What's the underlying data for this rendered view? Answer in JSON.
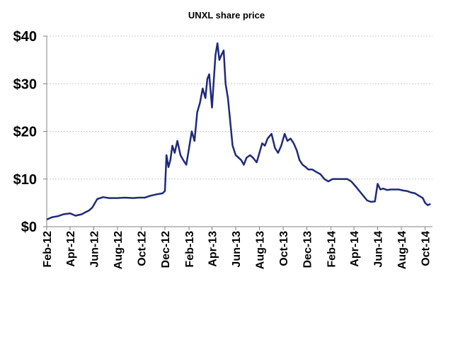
{
  "chart_data": {
    "type": "line",
    "title": "UNXL share price",
    "ylim": [
      0,
      40
    ],
    "yticks": [
      0,
      10,
      20,
      30,
      40
    ],
    "ytick_labels": [
      "$0",
      "$10",
      "$20",
      "$30",
      "$40"
    ],
    "xlim": [
      "2012-02-01",
      "2014-10-20"
    ],
    "xtick_dates": [
      "2012-02-01",
      "2012-04-01",
      "2012-06-01",
      "2012-08-01",
      "2012-10-01",
      "2012-12-01",
      "2013-02-01",
      "2013-04-01",
      "2013-06-01",
      "2013-08-01",
      "2013-10-01",
      "2013-12-01",
      "2014-02-01",
      "2014-04-01",
      "2014-06-01",
      "2014-08-01",
      "2014-10-01"
    ],
    "xtick_labels": [
      "Feb-12",
      "Apr-12",
      "Jun-12",
      "Aug-12",
      "Oct-12",
      "Dec-12",
      "Feb-13",
      "Apr-13",
      "Jun-13",
      "Aug-13",
      "Oct-13",
      "Dec-13",
      "Feb-14",
      "Apr-14",
      "Jun-14",
      "Aug-14",
      "Oct-14"
    ],
    "grid": true,
    "line_color": "#1f2a7a",
    "series": [
      {
        "x": [
          "2012-02-01",
          "2012-02-15",
          "2012-03-01",
          "2012-03-15",
          "2012-04-01",
          "2012-04-15",
          "2012-05-01",
          "2012-05-10",
          "2012-05-20",
          "2012-05-28",
          "2012-06-10",
          "2012-06-25",
          "2012-07-10",
          "2012-08-01",
          "2012-08-20",
          "2012-09-10",
          "2012-09-25",
          "2012-10-10",
          "2012-10-25",
          "2012-11-10",
          "2012-11-25",
          "2012-12-01",
          "2012-12-05",
          "2012-12-10",
          "2012-12-15",
          "2012-12-20",
          "2012-12-26",
          "2013-01-02",
          "2013-01-10",
          "2013-01-17",
          "2013-01-25",
          "2013-02-01",
          "2013-02-08",
          "2013-02-15",
          "2013-02-22",
          "2013-03-01",
          "2013-03-08",
          "2013-03-15",
          "2013-03-20",
          "2013-03-25",
          "2013-04-01",
          "2013-04-05",
          "2013-04-10",
          "2013-04-15",
          "2013-04-20",
          "2013-04-25",
          "2013-05-01",
          "2013-05-06",
          "2013-05-12",
          "2013-05-18",
          "2013-05-24",
          "2013-06-01",
          "2013-06-08",
          "2013-06-15",
          "2013-06-22",
          "2013-06-29",
          "2013-07-08",
          "2013-07-15",
          "2013-07-25",
          "2013-08-01",
          "2013-08-08",
          "2013-08-15",
          "2013-08-22",
          "2013-09-01",
          "2013-09-10",
          "2013-09-18",
          "2013-09-26",
          "2013-10-05",
          "2013-10-12",
          "2013-10-20",
          "2013-10-28",
          "2013-11-05",
          "2013-11-12",
          "2013-11-20",
          "2013-11-28",
          "2013-12-05",
          "2013-12-15",
          "2013-12-25",
          "2014-01-05",
          "2014-01-15",
          "2014-01-25",
          "2014-02-05",
          "2014-02-15",
          "2014-03-01",
          "2014-03-15",
          "2014-03-25",
          "2014-04-05",
          "2014-04-15",
          "2014-04-25",
          "2014-05-05",
          "2014-05-15",
          "2014-05-25",
          "2014-06-01",
          "2014-06-08",
          "2014-06-15",
          "2014-06-25",
          "2014-07-05",
          "2014-07-15",
          "2014-07-25",
          "2014-08-05",
          "2014-08-15",
          "2014-08-25",
          "2014-09-05",
          "2014-09-15",
          "2014-09-25",
          "2014-10-01",
          "2014-10-08",
          "2014-10-15"
        ],
        "values": [
          1.5,
          2.0,
          2.2,
          2.6,
          2.8,
          2.3,
          2.6,
          3.0,
          3.4,
          4.0,
          5.8,
          6.2,
          6.0,
          6.0,
          6.1,
          6.0,
          6.1,
          6.1,
          6.5,
          6.8,
          7.0,
          7.5,
          15.0,
          12.5,
          14.0,
          17.0,
          15.5,
          18.0,
          15.0,
          14.0,
          13.0,
          16.5,
          20.0,
          18.0,
          24.0,
          26.0,
          29.0,
          27.0,
          31.0,
          32.0,
          25.0,
          30.0,
          36.0,
          38.5,
          35.0,
          36.0,
          37.0,
          30.0,
          27.0,
          22.0,
          17.0,
          15.0,
          14.5,
          14.0,
          13.0,
          14.5,
          15.0,
          14.5,
          13.5,
          15.5,
          17.5,
          17.0,
          18.5,
          19.5,
          16.5,
          15.5,
          17.0,
          19.5,
          18.0,
          18.5,
          17.5,
          16.0,
          14.0,
          13.0,
          12.5,
          12.0,
          12.0,
          11.5,
          11.0,
          10.0,
          9.5,
          10.0,
          10.0,
          10.0,
          10.0,
          9.5,
          8.5,
          7.5,
          6.5,
          5.5,
          5.2,
          5.3,
          9.0,
          7.8,
          8.0,
          7.7,
          7.8,
          7.8,
          7.8,
          7.6,
          7.5,
          7.2,
          7.0,
          6.5,
          6.0,
          5.0,
          4.5,
          4.8
        ]
      }
    ]
  }
}
